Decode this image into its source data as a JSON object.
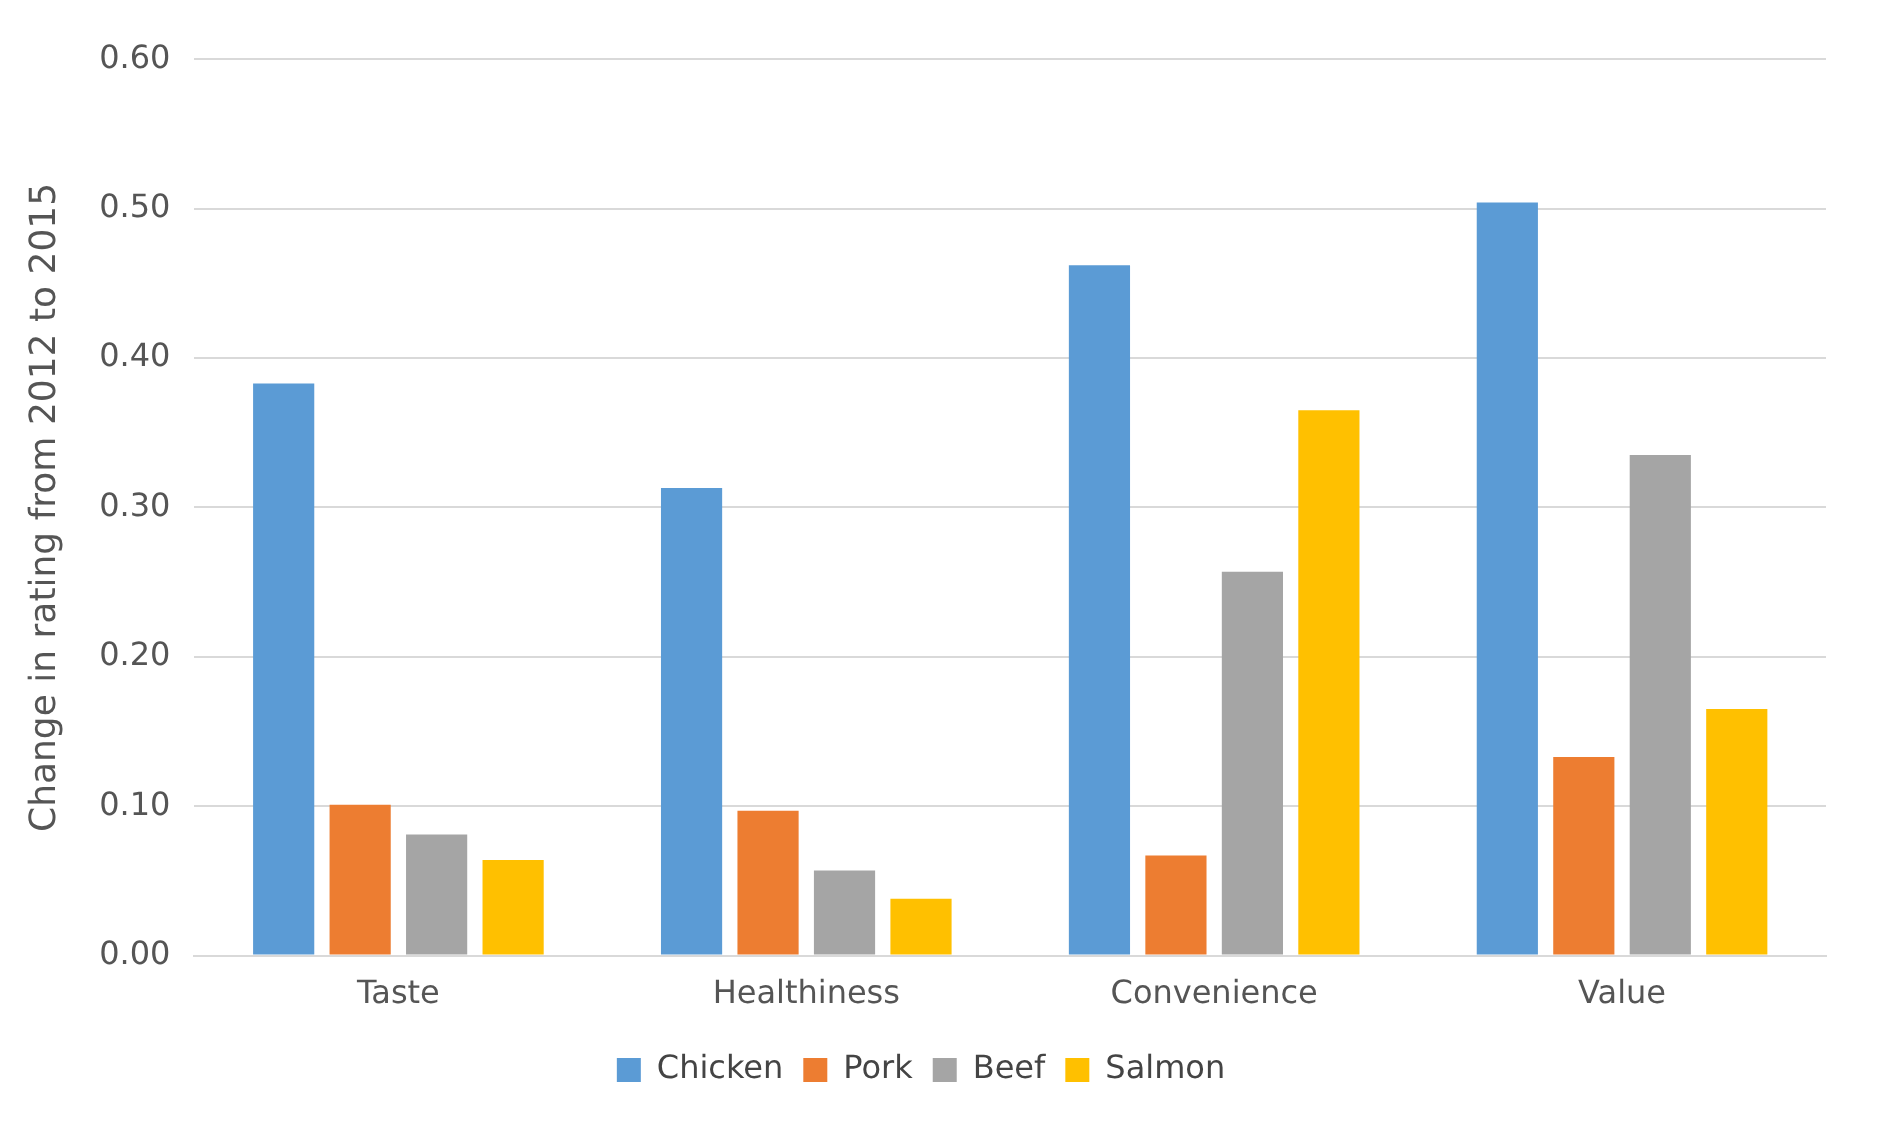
{
  "chart_data": {
    "type": "bar",
    "ylabel": "Change in rating from 2012 to 2015",
    "categories": [
      "Taste",
      "Healthiness",
      "Convenience",
      "Value"
    ],
    "series": [
      {
        "name": "Chicken",
        "color": "#5b9bd5",
        "values": [
          0.383,
          0.313,
          0.462,
          0.504
        ]
      },
      {
        "name": "Pork",
        "color": "#ed7d31",
        "values": [
          0.101,
          0.097,
          0.067,
          0.133
        ]
      },
      {
        "name": "Beef",
        "color": "#a5a5a5",
        "values": [
          0.081,
          0.057,
          0.257,
          0.335
        ]
      },
      {
        "name": "Salmon",
        "color": "#ffc000",
        "values": [
          0.064,
          0.038,
          0.365,
          0.165
        ]
      }
    ],
    "ylim": [
      0,
      0.6
    ],
    "yticks": [
      {
        "value": 0,
        "label": "0.00"
      },
      {
        "value": 0.1,
        "label": "0.10"
      },
      {
        "value": 0.2,
        "label": "0.20"
      },
      {
        "value": 0.3,
        "label": "0.30"
      },
      {
        "value": 0.4,
        "label": "0.40"
      },
      {
        "value": 0.5,
        "label": "0.50"
      },
      {
        "value": 0.6,
        "label": "0.60"
      }
    ],
    "grid": "y",
    "legend": "bottom"
  }
}
